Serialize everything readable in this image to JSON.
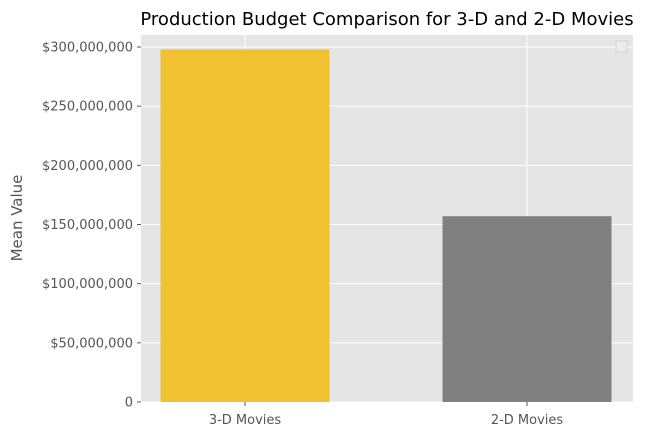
{
  "chart_data": {
    "type": "bar",
    "title": "Production Budget Comparison for 3-D and 2-D Movies",
    "ylabel": "Mean Value",
    "xlabel": "",
    "categories": [
      "3-D Movies",
      "2-D Movies"
    ],
    "values": [
      298000000,
      157000000
    ],
    "colors": [
      "#f0c232",
      "#808080"
    ],
    "ylim": [
      0,
      300000000
    ],
    "yticks": [
      0,
      50000000,
      100000000,
      150000000,
      200000000,
      250000000,
      300000000
    ],
    "ytick_labels": [
      "0",
      "$50,000,000",
      "$100,000,000",
      "$150,000,000",
      "$200,000,000",
      "$250,000,000",
      "$300,000,000"
    ],
    "grid": true,
    "background": "#e5e5e5",
    "legend": "top-right, empty"
  }
}
